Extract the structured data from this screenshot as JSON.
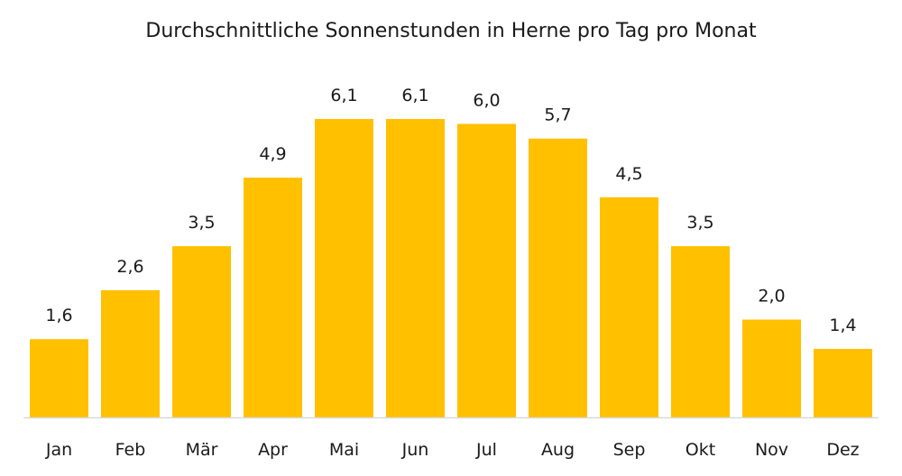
{
  "chart_data": {
    "type": "bar",
    "title": "Durchschnittliche Sonnenstunden in Herne pro Tag pro Monat",
    "categories": [
      "Jan",
      "Feb",
      "Mär",
      "Apr",
      "Mai",
      "Jun",
      "Jul",
      "Aug",
      "Sep",
      "Okt",
      "Nov",
      "Dez"
    ],
    "values": [
      1.6,
      2.6,
      3.5,
      4.9,
      6.1,
      6.1,
      6.0,
      5.7,
      4.5,
      3.5,
      2.0,
      1.4
    ],
    "value_labels": [
      "1,6",
      "2,6",
      "3,5",
      "4,9",
      "6,1",
      "6,1",
      "6,0",
      "5,7",
      "4,5",
      "3,5",
      "2,0",
      "1,4"
    ],
    "xlabel": "",
    "ylabel": "",
    "ylim": [
      0,
      6.1
    ],
    "grid": false,
    "legend": "none",
    "bar_color": "#FFC000",
    "axis_color": "#D9D9D9"
  }
}
